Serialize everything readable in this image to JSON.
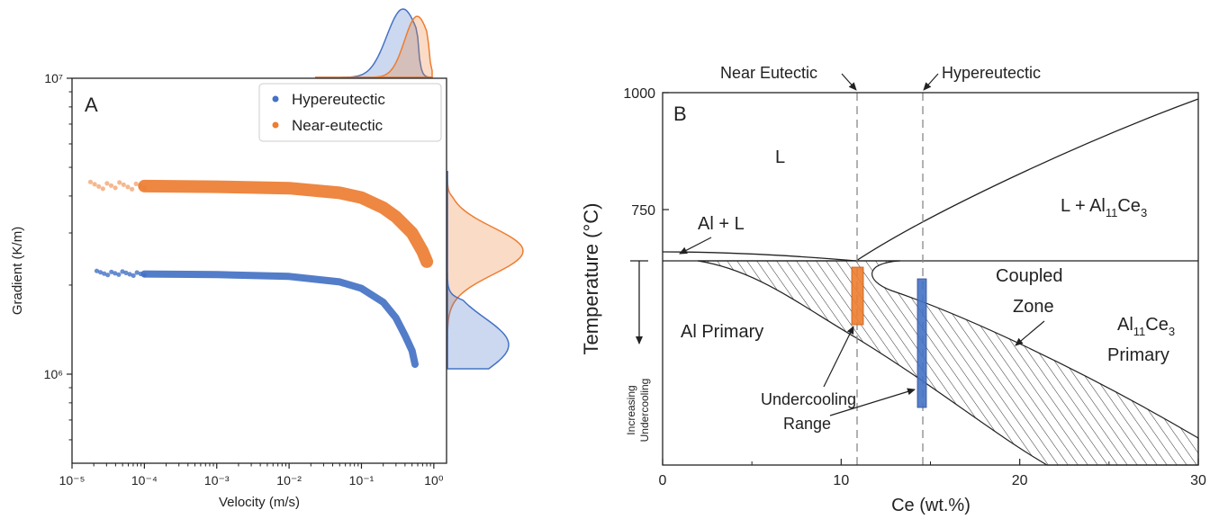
{
  "colors": {
    "hyper": "#4472c4",
    "near": "#ed7d31",
    "axis": "#222222"
  },
  "chart_data": [
    {
      "type": "scatter",
      "panel_label": "A",
      "xlabel": "Velocity (m/s)",
      "ylabel": "Gradient (K/m)",
      "xscale": "log",
      "yscale": "log",
      "xlim": [
        1e-05,
        1.5
      ],
      "ylim": [
        500000,
        10000000
      ],
      "x_ticks": [
        "10⁻⁵",
        "10⁻⁴",
        "10⁻³",
        "10⁻²",
        "10⁻¹",
        "10⁰"
      ],
      "y_ticks": [
        "10⁶",
        "10⁷"
      ],
      "legend": "top-right",
      "series": [
        {
          "name": "Hypereutectic",
          "color": "#4472c4",
          "x": [
            2.2e-05,
            5e-05,
            0.0001,
            0.001,
            0.01,
            0.05,
            0.1,
            0.2,
            0.3,
            0.4,
            0.5,
            0.55
          ],
          "y": [
            2200000,
            2190000,
            2180000,
            2170000,
            2140000,
            2050000,
            1950000,
            1750000,
            1550000,
            1350000,
            1200000,
            1080000
          ]
        },
        {
          "name": "Near-eutectic",
          "color": "#ed7d31",
          "x": [
            1.8e-05,
            5e-05,
            0.0001,
            0.001,
            0.01,
            0.05,
            0.1,
            0.2,
            0.3,
            0.5,
            0.7,
            0.8
          ],
          "y": [
            4350000,
            4330000,
            4320000,
            4300000,
            4250000,
            4100000,
            3950000,
            3650000,
            3400000,
            3000000,
            2600000,
            2400000
          ]
        }
      ]
    },
    {
      "type": "line",
      "panel_label": "B",
      "xlabel": "Ce (wt.%)",
      "ylabel": "Temperature (°C)",
      "xlim": [
        0,
        30
      ],
      "x_ticks": [
        "0",
        "10",
        "20",
        "30"
      ],
      "y_ticks": [
        "750",
        "1000"
      ],
      "regions": [
        "L",
        "Al + L",
        "L + Al",
        "Al Primary",
        "Coupled",
        "Zone",
        "Al",
        "Primary",
        "Increasing",
        "Undercooling"
      ],
      "region_subscripts": {
        "al": "11",
        "ce": "3"
      },
      "ce_label": "Ce",
      "annotations": [
        "Near Eutectic",
        "Hypereutectic",
        "Undercooling",
        "Range"
      ],
      "compositions": [
        {
          "name": "Near Eutectic",
          "x": 11
        },
        {
          "name": "Hypereutectic",
          "x": 14.5
        }
      ]
    }
  ]
}
